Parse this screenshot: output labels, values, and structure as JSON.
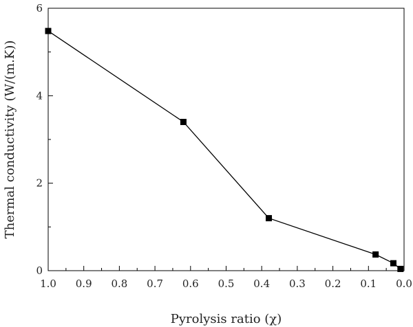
{
  "chart_data": {
    "type": "line",
    "title": "",
    "xlabel": "Pyrolysis ratio (χ)",
    "ylabel": "Thermal conductivity (W/(m.K))",
    "xlim": [
      1.0,
      0.0
    ],
    "ylim": [
      0,
      6
    ],
    "x_reversed": true,
    "xticks": [
      1.0,
      0.9,
      0.8,
      0.7,
      0.6,
      0.5,
      0.4,
      0.3,
      0.2,
      0.1,
      0.0
    ],
    "xtick_labels": [
      "1.0",
      "0.9",
      "0.8",
      "0.7",
      "0.6",
      "0.5",
      "0.4",
      "0.3",
      "0.2",
      "0.1",
      "0.0"
    ],
    "yticks": [
      0,
      2,
      4,
      6
    ],
    "ytick_labels": [
      "0",
      "2",
      "4",
      "6"
    ],
    "grid": false,
    "series": [
      {
        "marker": "square",
        "color": "#000000",
        "x": [
          1.0,
          0.62,
          0.38,
          0.08,
          0.03,
          0.01
        ],
        "y": [
          5.48,
          3.4,
          1.2,
          0.37,
          0.17,
          0.04
        ]
      }
    ]
  }
}
